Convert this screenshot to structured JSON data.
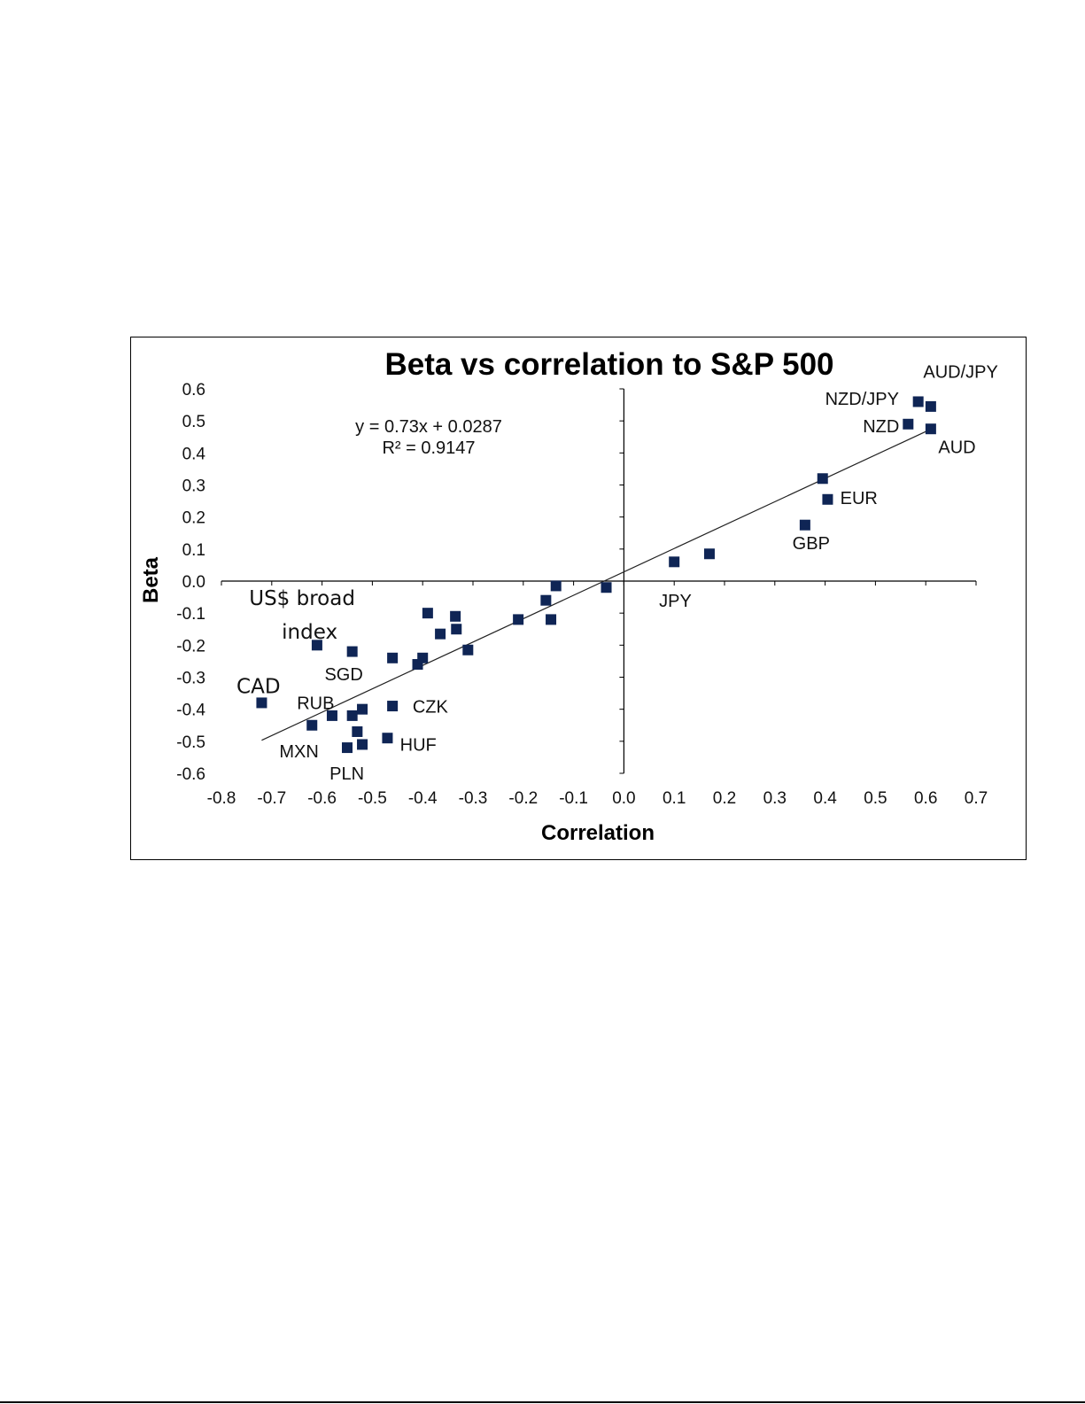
{
  "chart_data": {
    "type": "scatter",
    "title": "Beta vs correlation to  S&P 500",
    "xlabel": "Correlation",
    "ylabel": "Beta",
    "xlim": [
      -0.8,
      0.7
    ],
    "ylim": [
      -0.6,
      0.6
    ],
    "x_ticks": [
      "-0.8",
      "-0.7",
      "-0.6",
      "-0.5",
      "-0.4",
      "-0.3",
      "-0.2",
      "-0.1",
      "0.0",
      "0.1",
      "0.2",
      "0.3",
      "0.4",
      "0.5",
      "0.6",
      "0.7"
    ],
    "y_ticks": [
      "0.6",
      "0.5",
      "0.4",
      "0.3",
      "0.2",
      "0.1",
      "0.0",
      "-0.1",
      "-0.2",
      "-0.3",
      "-0.4",
      "-0.5",
      "-0.6"
    ],
    "marker": "square",
    "marker_color": "#0f2555",
    "trendline": {
      "equation": "y = 0.73x + 0.0287",
      "r_squared": "R² = 0.9147",
      "slope": 0.73,
      "intercept": 0.0287,
      "x_range": [
        -0.72,
        0.61
      ]
    },
    "points": [
      {
        "x": -0.72,
        "y": -0.38
      },
      {
        "x": -0.61,
        "y": -0.2
      },
      {
        "x": -0.54,
        "y": -0.22
      },
      {
        "x": -0.62,
        "y": -0.45
      },
      {
        "x": -0.58,
        "y": -0.42
      },
      {
        "x": -0.54,
        "y": -0.42
      },
      {
        "x": -0.53,
        "y": -0.47
      },
      {
        "x": -0.52,
        "y": -0.4
      },
      {
        "x": -0.55,
        "y": -0.52
      },
      {
        "x": -0.52,
        "y": -0.51
      },
      {
        "x": -0.47,
        "y": -0.49
      },
      {
        "x": -0.46,
        "y": -0.39
      },
      {
        "x": -0.46,
        "y": -0.24
      },
      {
        "x": -0.41,
        "y": -0.26
      },
      {
        "x": -0.4,
        "y": -0.24
      },
      {
        "x": -0.39,
        "y": -0.1
      },
      {
        "x": -0.365,
        "y": -0.165
      },
      {
        "x": -0.335,
        "y": -0.11
      },
      {
        "x": -0.333,
        "y": -0.15
      },
      {
        "x": -0.31,
        "y": -0.215
      },
      {
        "x": -0.21,
        "y": -0.12
      },
      {
        "x": -0.155,
        "y": -0.06
      },
      {
        "x": -0.145,
        "y": -0.12
      },
      {
        "x": -0.135,
        "y": -0.015
      },
      {
        "x": -0.035,
        "y": -0.02
      },
      {
        "x": 0.1,
        "y": 0.06
      },
      {
        "x": 0.17,
        "y": 0.085
      },
      {
        "x": 0.36,
        "y": 0.175
      },
      {
        "x": 0.395,
        "y": 0.32
      },
      {
        "x": 0.405,
        "y": 0.255
      },
      {
        "x": 0.565,
        "y": 0.49
      },
      {
        "x": 0.585,
        "y": 0.56
      },
      {
        "x": 0.61,
        "y": 0.545
      },
      {
        "x": 0.61,
        "y": 0.475
      }
    ],
    "labels": [
      {
        "text": "AUD/JPY",
        "x": 0.595,
        "y": 0.635,
        "size": "normal"
      },
      {
        "text": "NZD/JPY",
        "x": 0.4,
        "y": 0.55,
        "size": "normal"
      },
      {
        "text": "NZD",
        "x": 0.475,
        "y": 0.465,
        "size": "normal"
      },
      {
        "text": "AUD",
        "x": 0.625,
        "y": 0.4,
        "size": "normal"
      },
      {
        "text": "EUR",
        "x": 0.43,
        "y": 0.24,
        "size": "normal"
      },
      {
        "text": "GBP",
        "x": 0.335,
        "y": 0.1,
        "size": "normal"
      },
      {
        "text": "JPY",
        "x": 0.07,
        "y": -0.08,
        "size": "normal"
      },
      {
        "text": "US$ broad",
        "x": -0.745,
        "y": -0.075,
        "size": "big"
      },
      {
        "text": "index",
        "x": -0.68,
        "y": -0.18,
        "size": "big"
      },
      {
        "text": "SGD",
        "x": -0.595,
        "y": -0.31,
        "size": "normal"
      },
      {
        "text": "CAD",
        "x": -0.77,
        "y": -0.35,
        "size": "big"
      },
      {
        "text": "RUB",
        "x": -0.65,
        "y": -0.4,
        "size": "normal"
      },
      {
        "text": "CZK",
        "x": -0.42,
        "y": -0.41,
        "size": "normal"
      },
      {
        "text": "MXN",
        "x": -0.685,
        "y": -0.55,
        "size": "normal"
      },
      {
        "text": "HUF",
        "x": -0.445,
        "y": -0.53,
        "size": "normal"
      },
      {
        "text": "PLN",
        "x": -0.585,
        "y": -0.62,
        "size": "normal"
      }
    ],
    "grid": false,
    "legend": "none"
  }
}
